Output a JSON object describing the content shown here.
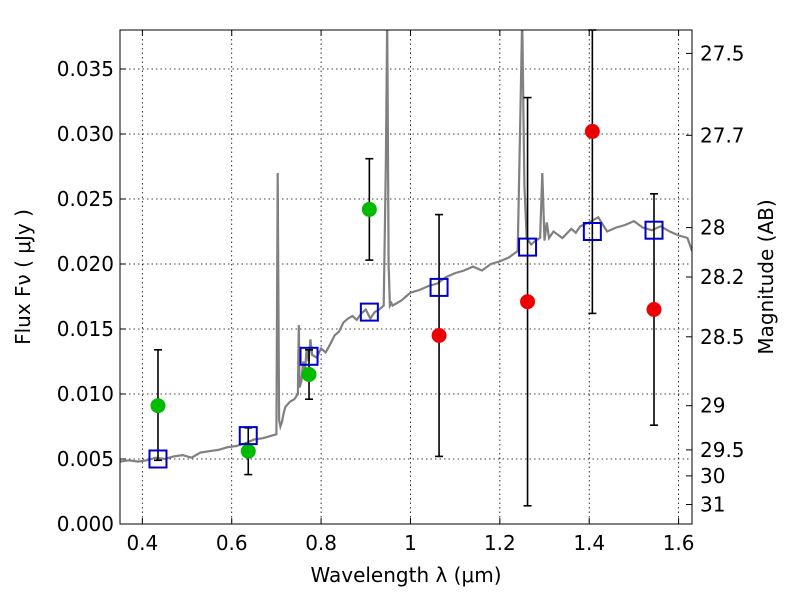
{
  "chart_data": {
    "type": "scatter",
    "xlabel": "Wavelength  λ (μm)",
    "ylabel": "Flux  Fν ( μJy )",
    "y2label": "Magnitude (AB)",
    "xlim": [
      0.35,
      1.63
    ],
    "ylim": [
      0.0,
      0.038
    ],
    "grid": true,
    "x_ticks": [
      0.4,
      0.6,
      0.8,
      1.0,
      1.2,
      1.4,
      1.6
    ],
    "x_tick_labels": [
      "0.4",
      "0.6",
      "0.8",
      "1",
      "1.2",
      "1.4",
      "1.6"
    ],
    "y_ticks": [
      0.0,
      0.005,
      0.01,
      0.015,
      0.02,
      0.025,
      0.03,
      0.035
    ],
    "y_tick_labels": [
      "0.000",
      "0.005",
      "0.010",
      "0.015",
      "0.020",
      "0.025",
      "0.030",
      "0.035"
    ],
    "y2_ticks": [
      {
        "label": "27.5",
        "flux": 0.0362
      },
      {
        "label": "27.7",
        "flux": 0.0299
      },
      {
        "label": "28",
        "flux": 0.0228
      },
      {
        "label": "28.2",
        "flux": 0.019
      },
      {
        "label": "28.5",
        "flux": 0.0144
      },
      {
        "label": "29",
        "flux": 0.0091
      },
      {
        "label": "29.5",
        "flux": 0.0057
      },
      {
        "label": "30",
        "flux": 0.0037
      },
      {
        "label": "31",
        "flux": 0.0015
      }
    ],
    "colors": {
      "sed": "#808080",
      "green": "#00bb00",
      "red": "#ee0000",
      "model": "#0000cc",
      "errorbar": "#000000"
    },
    "sed_spectrum": {
      "x": [
        0.35,
        0.37,
        0.39,
        0.41,
        0.43,
        0.45,
        0.47,
        0.49,
        0.51,
        0.53,
        0.55,
        0.57,
        0.59,
        0.61,
        0.63,
        0.65,
        0.67,
        0.69,
        0.7,
        0.703,
        0.706,
        0.709,
        0.712,
        0.716,
        0.72,
        0.73,
        0.74,
        0.748,
        0.75,
        0.752,
        0.756,
        0.76,
        0.764,
        0.768,
        0.772,
        0.776,
        0.78,
        0.79,
        0.8,
        0.81,
        0.82,
        0.83,
        0.84,
        0.85,
        0.86,
        0.87,
        0.88,
        0.89,
        0.9,
        0.91,
        0.92,
        0.93,
        0.94,
        0.945,
        0.948,
        0.951,
        0.954,
        0.957,
        0.96,
        0.97,
        0.98,
        0.99,
        1.0,
        1.02,
        1.04,
        1.06,
        1.08,
        1.1,
        1.12,
        1.14,
        1.16,
        1.18,
        1.2,
        1.22,
        1.24,
        1.245,
        1.25,
        1.255,
        1.26,
        1.27,
        1.28,
        1.29,
        1.295,
        1.3,
        1.305,
        1.31,
        1.32,
        1.34,
        1.36,
        1.37,
        1.38,
        1.4,
        1.42,
        1.44,
        1.46,
        1.48,
        1.5,
        1.52,
        1.54,
        1.56,
        1.58,
        1.6,
        1.62,
        1.63
      ],
      "y": [
        0.0048,
        0.0049,
        0.0048,
        0.0049,
        0.0051,
        0.005,
        0.0052,
        0.0053,
        0.0051,
        0.0055,
        0.0056,
        0.0057,
        0.0059,
        0.006,
        0.0062,
        0.0065,
        0.0066,
        0.0068,
        0.0069,
        0.027,
        0.008,
        0.0075,
        0.0078,
        0.0085,
        0.009,
        0.0094,
        0.0096,
        0.01,
        0.0153,
        0.0105,
        0.011,
        0.0125,
        0.0118,
        0.0136,
        0.0125,
        0.0142,
        0.013,
        0.0128,
        0.0135,
        0.0132,
        0.0138,
        0.0145,
        0.0148,
        0.0155,
        0.0158,
        0.016,
        0.0157,
        0.0162,
        0.0165,
        0.0158,
        0.0163,
        0.0165,
        0.0168,
        0.028,
        0.039,
        0.02,
        0.0168,
        0.017,
        0.0168,
        0.017,
        0.0172,
        0.0175,
        0.0178,
        0.018,
        0.0183,
        0.0185,
        0.019,
        0.0193,
        0.0195,
        0.0198,
        0.0195,
        0.02,
        0.0202,
        0.0205,
        0.021,
        0.03,
        0.039,
        0.026,
        0.022,
        0.0215,
        0.0218,
        0.022,
        0.027,
        0.0218,
        0.0232,
        0.022,
        0.0225,
        0.022,
        0.0227,
        0.0224,
        0.0229,
        0.0232,
        0.0236,
        0.0225,
        0.0228,
        0.023,
        0.0233,
        0.0228,
        0.0226,
        0.0229,
        0.0225,
        0.0222,
        0.022,
        0.021
      ]
    },
    "series": [
      {
        "color_key": "green",
        "x": [
          0.435,
          0.637,
          0.773,
          0.908
        ],
        "y": [
          0.0091,
          0.0056,
          0.0115,
          0.0242
        ],
        "yerr_low": [
          0.0042,
          0.0018,
          0.0019,
          0.0039
        ],
        "yerr_high": [
          0.0043,
          0.0018,
          0.0019,
          0.0039
        ]
      },
      {
        "color_key": "red",
        "x": [
          1.064,
          1.262,
          1.407,
          1.545
        ],
        "y": [
          0.0145,
          0.0171,
          0.0302,
          0.0165
        ],
        "yerr_low": [
          0.0093,
          0.0157,
          0.014,
          0.0089
        ],
        "yerr_high": [
          0.0093,
          0.0157,
          0.0085,
          0.0089
        ]
      }
    ],
    "model_points": {
      "x": [
        0.435,
        0.637,
        0.773,
        0.908,
        1.064,
        1.262,
        1.407,
        1.545
      ],
      "y": [
        0.005,
        0.0068,
        0.0129,
        0.0163,
        0.0182,
        0.0213,
        0.0225,
        0.0226
      ]
    }
  }
}
